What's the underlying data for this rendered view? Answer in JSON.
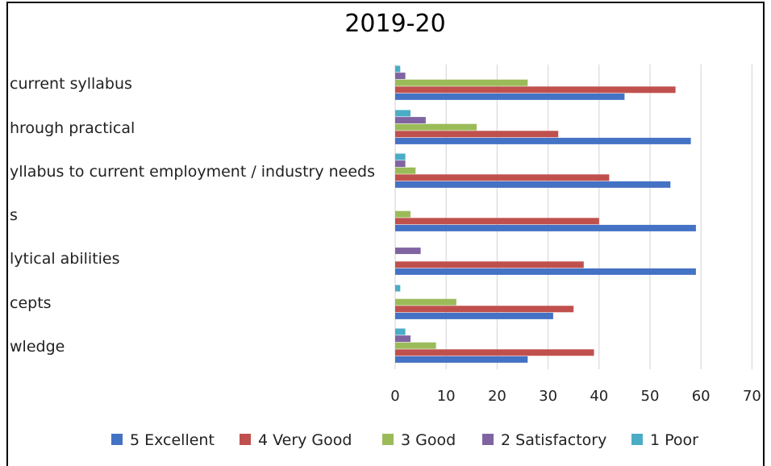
{
  "chart_data": {
    "type": "bar",
    "orientation": "horizontal",
    "title": "2019-20",
    "categories": [
      "current syllabus",
      "hrough practical",
      "yllabus to current employment / industry needs",
      "s",
      "lytical abilities",
      "cepts",
      "wledge"
    ],
    "series": [
      {
        "name": "5 Excellent",
        "color": "#4472C4",
        "values": [
          45,
          58,
          54,
          59,
          59,
          31,
          26
        ]
      },
      {
        "name": "4 Very Good",
        "color": "#C0504D",
        "values": [
          55,
          32,
          42,
          40,
          37,
          35,
          39
        ]
      },
      {
        "name": "3 Good",
        "color": "#9BBB59",
        "values": [
          26,
          16,
          4,
          3,
          0,
          12,
          8
        ]
      },
      {
        "name": "2 Satisfactory",
        "color": "#8064A2",
        "values": [
          2,
          6,
          2,
          0,
          5,
          0,
          3
        ]
      },
      {
        "name": "1 Poor",
        "color": "#4BACC6",
        "values": [
          1,
          3,
          2,
          0,
          0,
          1,
          2
        ]
      }
    ],
    "xlim": [
      0,
      70
    ],
    "xticks": [
      0,
      10,
      20,
      30,
      40,
      50,
      60,
      70
    ],
    "grid": true,
    "legend": "bottom"
  }
}
